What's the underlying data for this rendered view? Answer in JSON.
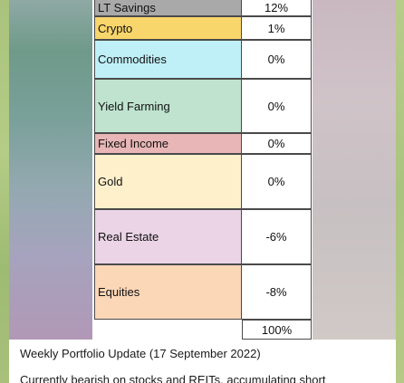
{
  "table": {
    "rows": [
      {
        "label": "LT Savings",
        "value": "12%",
        "color": "#a9a9a9"
      },
      {
        "label": "Crypto",
        "value": "1%",
        "color": "#f9d66b"
      },
      {
        "label": "Commodities",
        "value": "0%",
        "color": "#bff0f7"
      },
      {
        "label": "Yield Farming",
        "value": "0%",
        "color": "#bfe3cf"
      },
      {
        "label": "Fixed Income",
        "value": "0%",
        "color": "#e8b6b6"
      },
      {
        "label": "Gold",
        "value": "0%",
        "color": "#fdf0cb"
      },
      {
        "label": "Real Estate",
        "value": "-6%",
        "color": "#ead4e6"
      },
      {
        "label": "Equities",
        "value": "-8%",
        "color": "#fbd6b7"
      }
    ],
    "total": "100%"
  },
  "caption": {
    "title": "Weekly Portfolio Update (17 September 2022)",
    "body": "Currently bearish on stocks and REITs, accumulating short"
  }
}
